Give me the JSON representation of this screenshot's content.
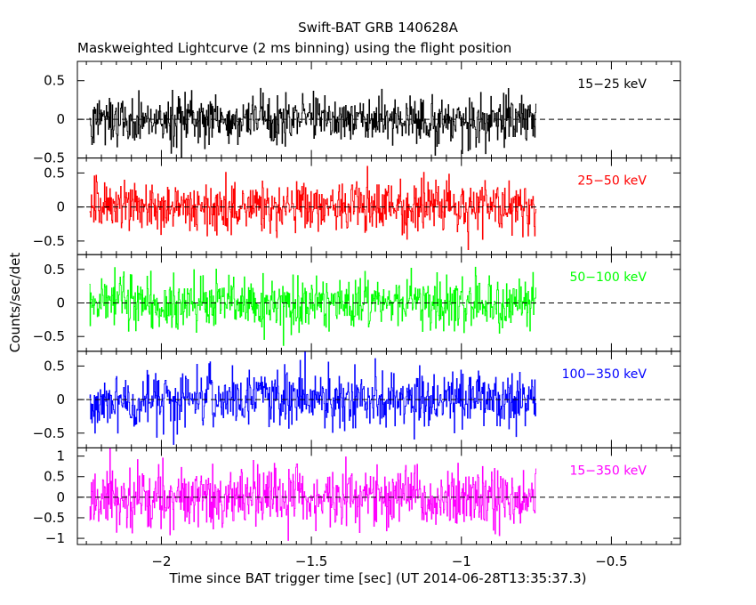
{
  "title": "Swift-BAT GRB 140628A",
  "subtitle": "Maskweighted Lightcurve (2 ms binning) using the flight position",
  "chart_data": {
    "type": "line",
    "xlabel": "Time since BAT trigger time [sec] (UT 2014-06-28T13:35:37.3)",
    "ylabel": "Counts/sec/det",
    "xlim": [
      -2.28,
      -0.27
    ],
    "data_x_range": [
      -2.24,
      -0.75
    ],
    "bin_width": 0.002,
    "x_ticks": [
      -2,
      -1.5,
      -1,
      -0.5
    ],
    "x_tick_labels": [
      "−2",
      "−1.5",
      "−1",
      "−0.5"
    ],
    "grid": false,
    "zero_line": "dashed",
    "panels": [
      {
        "name": "15−25 keV",
        "color": "#000000",
        "ylim": [
          -0.5,
          0.75
        ],
        "y_ticks": [
          -0.5,
          0,
          0.5
        ],
        "y_tick_labels": [
          "−0.5",
          "0",
          "0.5"
        ],
        "noise_sigma": 0.16,
        "mean": 0.0
      },
      {
        "name": "25−50 keV",
        "color": "#ff0000",
        "ylim": [
          -0.7,
          0.72
        ],
        "y_ticks": [
          -0.5,
          0,
          0.5
        ],
        "y_tick_labels": [
          "−0.5",
          "0",
          "0.5"
        ],
        "noise_sigma": 0.19,
        "mean": 0.0
      },
      {
        "name": "50−100 keV",
        "color": "#00ff00",
        "ylim": [
          -0.72,
          0.72
        ],
        "y_ticks": [
          -0.5,
          0,
          0.5
        ],
        "y_tick_labels": [
          "−0.5",
          "0",
          "0.5"
        ],
        "noise_sigma": 0.2,
        "mean": 0.0
      },
      {
        "name": "100−350 keV",
        "color": "#0000ff",
        "ylim": [
          -0.72,
          0.72
        ],
        "y_ticks": [
          -0.5,
          0,
          0.5
        ],
        "y_tick_labels": [
          "−0.5",
          "0",
          "0.5"
        ],
        "noise_sigma": 0.21,
        "mean": 0.0
      },
      {
        "name": "15−350 keV",
        "color": "#ff00ff",
        "ylim": [
          -1.15,
          1.2
        ],
        "y_ticks": [
          -1,
          -0.5,
          0,
          0.5,
          1
        ],
        "y_tick_labels": [
          "−1",
          "−0.5",
          "0",
          "0.5",
          "1"
        ],
        "noise_sigma": 0.36,
        "mean": 0.0
      }
    ]
  }
}
